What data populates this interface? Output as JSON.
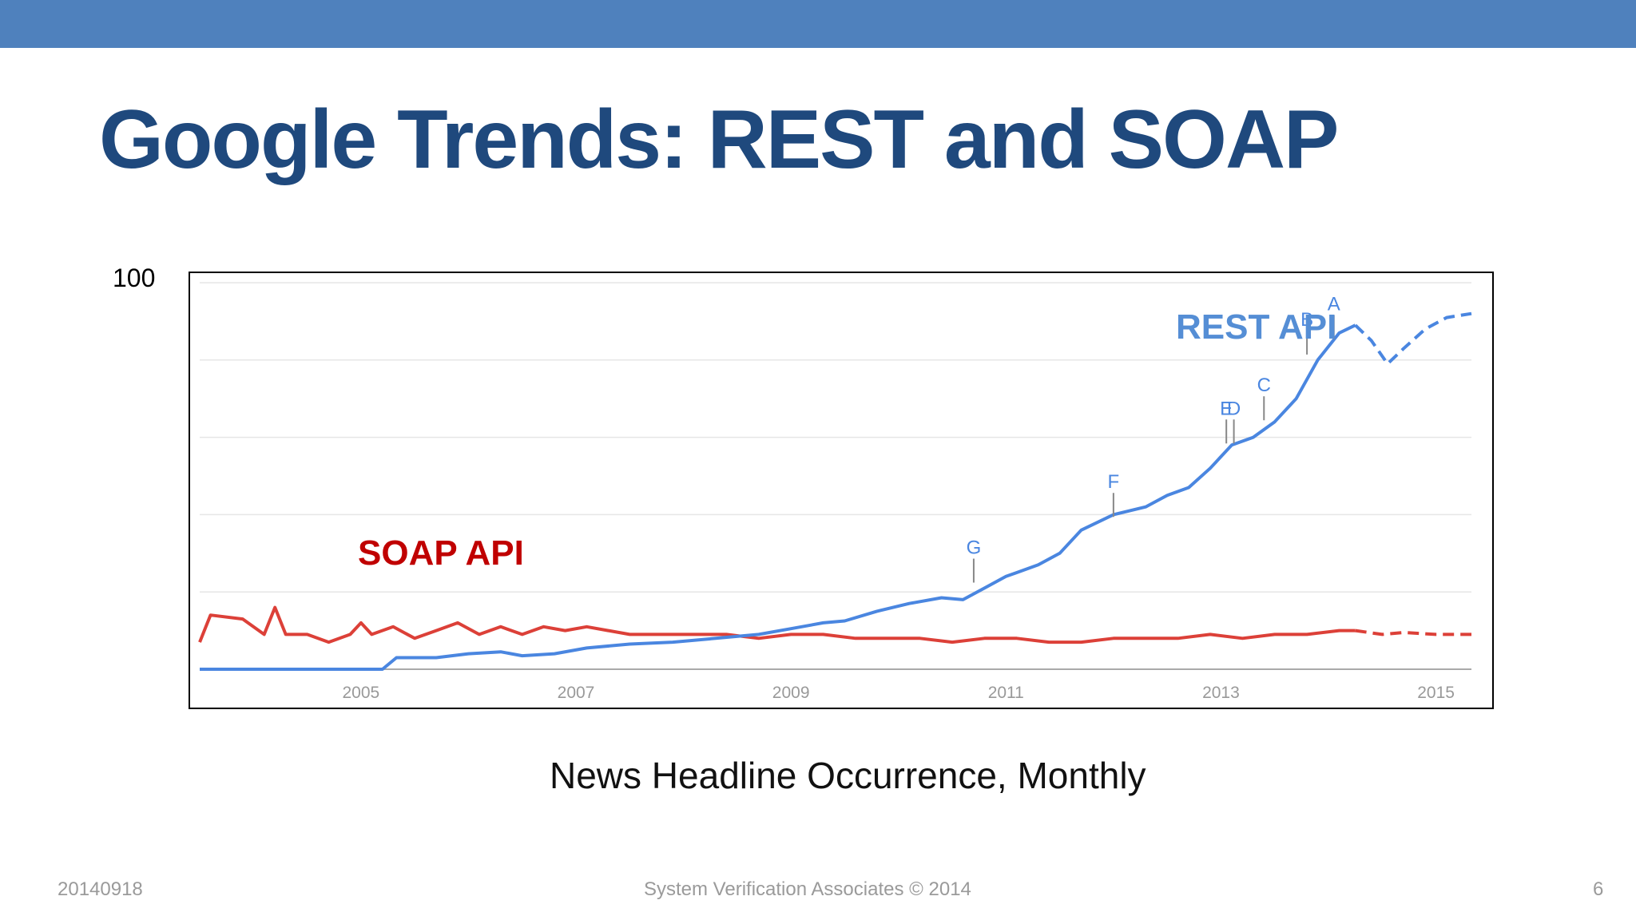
{
  "slide": {
    "title": "Google Trends: REST and SOAP",
    "caption": "News Headline Occurrence, Monthly",
    "footer": {
      "date": "20140918",
      "organization": "System Verification Associates    © 2014",
      "page": "6"
    },
    "accent_color": "#4f81bd",
    "title_color": "#1f497d"
  },
  "chart_data": {
    "type": "line",
    "title": "",
    "xlabel": "",
    "ylabel": "",
    "ymax_label": "100",
    "ylim": [
      0,
      100
    ],
    "xlim": [
      2004.0,
      2015.83
    ],
    "x_ticks": [
      "2005",
      "2007",
      "2009",
      "2011",
      "2013",
      "2015"
    ],
    "grid": true,
    "forecast_from": 2014.75,
    "series": [
      {
        "name": "REST API",
        "color": "#4a86e0",
        "label_color": "#558ed5",
        "points": [
          [
            2004.0,
            0
          ],
          [
            2005.7,
            0
          ],
          [
            2005.83,
            3
          ],
          [
            2006.2,
            3
          ],
          [
            2006.5,
            4
          ],
          [
            2006.8,
            4.5
          ],
          [
            2007.0,
            3.5
          ],
          [
            2007.3,
            4
          ],
          [
            2007.6,
            5.5
          ],
          [
            2008.0,
            6.5
          ],
          [
            2008.4,
            7
          ],
          [
            2008.8,
            8
          ],
          [
            2009.2,
            9
          ],
          [
            2009.5,
            10.5
          ],
          [
            2009.8,
            12
          ],
          [
            2010.0,
            12.5
          ],
          [
            2010.3,
            15
          ],
          [
            2010.6,
            17
          ],
          [
            2010.9,
            18.5
          ],
          [
            2011.1,
            18
          ],
          [
            2011.3,
            21
          ],
          [
            2011.5,
            24
          ],
          [
            2011.8,
            27
          ],
          [
            2012.0,
            30
          ],
          [
            2012.2,
            36
          ],
          [
            2012.5,
            40
          ],
          [
            2012.8,
            42
          ],
          [
            2013.0,
            45
          ],
          [
            2013.2,
            47
          ],
          [
            2013.4,
            52
          ],
          [
            2013.6,
            58
          ],
          [
            2013.8,
            60
          ],
          [
            2014.0,
            64
          ],
          [
            2014.2,
            70
          ],
          [
            2014.4,
            80
          ],
          [
            2014.6,
            87
          ],
          [
            2014.75,
            89
          ],
          [
            2014.9,
            85
          ],
          [
            2015.05,
            79
          ],
          [
            2015.2,
            83
          ],
          [
            2015.4,
            88
          ],
          [
            2015.6,
            91
          ],
          [
            2015.83,
            92
          ]
        ],
        "annotations": [
          {
            "label": "G",
            "x": 2011.2,
            "y": 22
          },
          {
            "label": "F",
            "x": 2012.5,
            "y": 39
          },
          {
            "label": "E",
            "x": 2013.55,
            "y": 58
          },
          {
            "label": "D",
            "x": 2013.62,
            "y": 58
          },
          {
            "label": "C",
            "x": 2013.9,
            "y": 64
          },
          {
            "label": "B",
            "x": 2014.3,
            "y": 81
          },
          {
            "label": "A",
            "x": 2014.55,
            "y": 85
          }
        ]
      },
      {
        "name": "SOAP API",
        "color": "#dc4038",
        "label_color": "#c00000",
        "points": [
          [
            2004.0,
            7
          ],
          [
            2004.1,
            14
          ],
          [
            2004.4,
            13
          ],
          [
            2004.6,
            9
          ],
          [
            2004.7,
            16
          ],
          [
            2004.8,
            9
          ],
          [
            2005.0,
            9
          ],
          [
            2005.2,
            7
          ],
          [
            2005.4,
            9
          ],
          [
            2005.5,
            12
          ],
          [
            2005.6,
            9
          ],
          [
            2005.8,
            11
          ],
          [
            2006.0,
            8
          ],
          [
            2006.2,
            10
          ],
          [
            2006.4,
            12
          ],
          [
            2006.6,
            9
          ],
          [
            2006.8,
            11
          ],
          [
            2007.0,
            9
          ],
          [
            2007.2,
            11
          ],
          [
            2007.4,
            10
          ],
          [
            2007.6,
            11
          ],
          [
            2007.8,
            10
          ],
          [
            2008.0,
            9
          ],
          [
            2008.3,
            9
          ],
          [
            2008.6,
            9
          ],
          [
            2008.9,
            9
          ],
          [
            2009.2,
            8
          ],
          [
            2009.5,
            9
          ],
          [
            2009.8,
            9
          ],
          [
            2010.1,
            8
          ],
          [
            2010.4,
            8
          ],
          [
            2010.7,
            8
          ],
          [
            2011.0,
            7
          ],
          [
            2011.3,
            8
          ],
          [
            2011.6,
            8
          ],
          [
            2011.9,
            7
          ],
          [
            2012.2,
            7
          ],
          [
            2012.5,
            8
          ],
          [
            2012.8,
            8
          ],
          [
            2013.1,
            8
          ],
          [
            2013.4,
            9
          ],
          [
            2013.7,
            8
          ],
          [
            2014.0,
            9
          ],
          [
            2014.3,
            9
          ],
          [
            2014.6,
            10
          ],
          [
            2014.75,
            10
          ],
          [
            2015.0,
            9
          ],
          [
            2015.2,
            9.5
          ],
          [
            2015.5,
            9
          ],
          [
            2015.83,
            9
          ]
        ]
      }
    ]
  }
}
